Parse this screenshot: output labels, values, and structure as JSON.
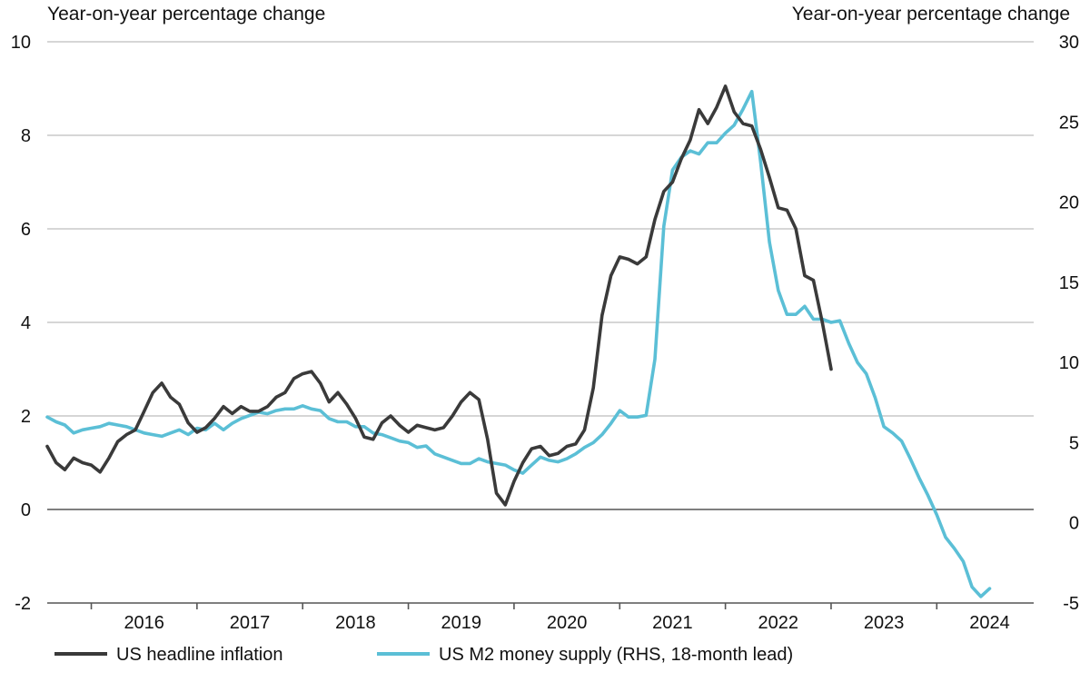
{
  "chart_data": {
    "type": "line",
    "title": "",
    "left_axis": {
      "label": "Year-on-year percentage change",
      "ylim": [
        -2,
        10
      ],
      "ticks": [
        -2,
        0,
        2,
        4,
        6,
        8,
        10
      ],
      "tick_labels": [
        "-2",
        "0",
        "2",
        "4",
        "6",
        "8",
        "10"
      ]
    },
    "right_axis": {
      "label": "Year-on-year percentage change",
      "ylim": [
        -5,
        30
      ],
      "ticks": [
        -5,
        0,
        5,
        10,
        15,
        20,
        25,
        30
      ],
      "tick_labels": [
        "-5",
        "0",
        "5",
        "10",
        "15",
        "20",
        "25",
        "30"
      ]
    },
    "x_axis": {
      "xlim": [
        2015.583,
        2024.917
      ],
      "year_labels": [
        "2016",
        "2017",
        "2018",
        "2019",
        "2020",
        "2021",
        "2022",
        "2023",
        "2024"
      ]
    },
    "gridlines": true,
    "legend_position": "bottom",
    "series": [
      {
        "name": "US headline inflation",
        "axis": "left",
        "color": "#3a3a3a",
        "points": [
          [
            2015.583,
            1.35
          ],
          [
            2015.667,
            1.0
          ],
          [
            2015.75,
            0.85
          ],
          [
            2015.833,
            1.1
          ],
          [
            2015.917,
            1.0
          ],
          [
            2016.0,
            0.95
          ],
          [
            2016.083,
            0.8
          ],
          [
            2016.167,
            1.1
          ],
          [
            2016.25,
            1.45
          ],
          [
            2016.333,
            1.6
          ],
          [
            2016.417,
            1.7
          ],
          [
            2016.5,
            2.1
          ],
          [
            2016.583,
            2.5
          ],
          [
            2016.667,
            2.7
          ],
          [
            2016.75,
            2.4
          ],
          [
            2016.833,
            2.25
          ],
          [
            2016.917,
            1.85
          ],
          [
            2017.0,
            1.65
          ],
          [
            2017.083,
            1.75
          ],
          [
            2017.167,
            1.95
          ],
          [
            2017.25,
            2.2
          ],
          [
            2017.333,
            2.05
          ],
          [
            2017.417,
            2.2
          ],
          [
            2017.5,
            2.1
          ],
          [
            2017.583,
            2.1
          ],
          [
            2017.667,
            2.2
          ],
          [
            2017.75,
            2.4
          ],
          [
            2017.833,
            2.5
          ],
          [
            2017.917,
            2.8
          ],
          [
            2018.0,
            2.9
          ],
          [
            2018.083,
            2.95
          ],
          [
            2018.167,
            2.7
          ],
          [
            2018.25,
            2.3
          ],
          [
            2018.333,
            2.5
          ],
          [
            2018.417,
            2.25
          ],
          [
            2018.5,
            1.95
          ],
          [
            2018.583,
            1.55
          ],
          [
            2018.667,
            1.5
          ],
          [
            2018.75,
            1.85
          ],
          [
            2018.833,
            2.0
          ],
          [
            2018.917,
            1.8
          ],
          [
            2019.0,
            1.65
          ],
          [
            2019.083,
            1.8
          ],
          [
            2019.167,
            1.75
          ],
          [
            2019.25,
            1.7
          ],
          [
            2019.333,
            1.75
          ],
          [
            2019.417,
            2.0
          ],
          [
            2019.5,
            2.3
          ],
          [
            2019.583,
            2.5
          ],
          [
            2019.667,
            2.35
          ],
          [
            2019.75,
            1.5
          ],
          [
            2019.833,
            0.35
          ],
          [
            2019.917,
            0.1
          ],
          [
            2020.0,
            0.6
          ],
          [
            2020.083,
            1.0
          ],
          [
            2020.167,
            1.3
          ],
          [
            2020.25,
            1.35
          ],
          [
            2020.333,
            1.15
          ],
          [
            2020.417,
            1.2
          ],
          [
            2020.5,
            1.35
          ],
          [
            2020.583,
            1.4
          ],
          [
            2020.667,
            1.7
          ],
          [
            2020.75,
            2.6
          ],
          [
            2020.833,
            4.15
          ],
          [
            2020.917,
            5.0
          ],
          [
            2021.0,
            5.4
          ],
          [
            2021.083,
            5.35
          ],
          [
            2021.167,
            5.25
          ],
          [
            2021.25,
            5.4
          ],
          [
            2021.333,
            6.2
          ],
          [
            2021.417,
            6.8
          ],
          [
            2021.5,
            7.0
          ],
          [
            2021.583,
            7.5
          ],
          [
            2021.667,
            7.9
          ],
          [
            2021.75,
            8.55
          ],
          [
            2021.833,
            8.25
          ],
          [
            2021.917,
            8.6
          ],
          [
            2022.0,
            9.05
          ],
          [
            2022.083,
            8.5
          ],
          [
            2022.167,
            8.25
          ],
          [
            2022.25,
            8.2
          ],
          [
            2022.333,
            7.7
          ],
          [
            2022.417,
            7.1
          ],
          [
            2022.5,
            6.45
          ],
          [
            2022.583,
            6.4
          ],
          [
            2022.667,
            6.0
          ],
          [
            2022.75,
            5.0
          ],
          [
            2022.833,
            4.9
          ],
          [
            2022.917,
            4.0
          ],
          [
            2023.0,
            3.0
          ]
        ]
      },
      {
        "name": "US M2 money supply (RHS, 18-month lead)",
        "axis": "right",
        "color": "#5bbfd6",
        "points": [
          [
            2015.583,
            6.6
          ],
          [
            2015.667,
            6.3
          ],
          [
            2015.75,
            6.1
          ],
          [
            2015.833,
            5.6
          ],
          [
            2015.917,
            5.8
          ],
          [
            2016.0,
            5.9
          ],
          [
            2016.083,
            6.0
          ],
          [
            2016.167,
            6.2
          ],
          [
            2016.25,
            6.1
          ],
          [
            2016.333,
            6.0
          ],
          [
            2016.417,
            5.8
          ],
          [
            2016.5,
            5.6
          ],
          [
            2016.583,
            5.5
          ],
          [
            2016.667,
            5.4
          ],
          [
            2016.75,
            5.6
          ],
          [
            2016.833,
            5.8
          ],
          [
            2016.917,
            5.5
          ],
          [
            2017.0,
            5.9
          ],
          [
            2017.083,
            5.8
          ],
          [
            2017.167,
            6.2
          ],
          [
            2017.25,
            5.8
          ],
          [
            2017.333,
            6.2
          ],
          [
            2017.417,
            6.5
          ],
          [
            2017.5,
            6.7
          ],
          [
            2017.583,
            6.9
          ],
          [
            2017.667,
            6.8
          ],
          [
            2017.75,
            7.0
          ],
          [
            2017.833,
            7.1
          ],
          [
            2017.917,
            7.1
          ],
          [
            2018.0,
            7.3
          ],
          [
            2018.083,
            7.1
          ],
          [
            2018.167,
            7.0
          ],
          [
            2018.25,
            6.5
          ],
          [
            2018.333,
            6.3
          ],
          [
            2018.417,
            6.3
          ],
          [
            2018.5,
            6.0
          ],
          [
            2018.583,
            6.0
          ],
          [
            2018.667,
            5.6
          ],
          [
            2018.75,
            5.5
          ],
          [
            2018.833,
            5.3
          ],
          [
            2018.917,
            5.1
          ],
          [
            2019.0,
            5.0
          ],
          [
            2019.083,
            4.7
          ],
          [
            2019.167,
            4.8
          ],
          [
            2019.25,
            4.3
          ],
          [
            2019.333,
            4.1
          ],
          [
            2019.417,
            3.9
          ],
          [
            2019.5,
            3.7
          ],
          [
            2019.583,
            3.7
          ],
          [
            2019.667,
            4.0
          ],
          [
            2019.75,
            3.8
          ],
          [
            2019.833,
            3.7
          ],
          [
            2019.917,
            3.6
          ],
          [
            2020.0,
            3.3
          ],
          [
            2020.083,
            3.1
          ],
          [
            2020.167,
            3.6
          ],
          [
            2020.25,
            4.1
          ],
          [
            2020.333,
            3.9
          ],
          [
            2020.417,
            3.8
          ],
          [
            2020.5,
            4.0
          ],
          [
            2020.583,
            4.3
          ],
          [
            2020.667,
            4.7
          ],
          [
            2020.75,
            5.0
          ],
          [
            2020.833,
            5.5
          ],
          [
            2020.917,
            6.2
          ],
          [
            2021.0,
            7.0
          ],
          [
            2021.083,
            6.6
          ],
          [
            2021.167,
            6.6
          ],
          [
            2021.25,
            6.7
          ],
          [
            2021.333,
            10.2
          ],
          [
            2021.417,
            18.5
          ],
          [
            2021.5,
            22.0
          ],
          [
            2021.583,
            22.8
          ],
          [
            2021.667,
            23.2
          ],
          [
            2021.75,
            23.0
          ],
          [
            2021.833,
            23.7
          ],
          [
            2021.917,
            23.7
          ],
          [
            2022.0,
            24.3
          ],
          [
            2022.083,
            24.8
          ],
          [
            2022.167,
            25.8
          ],
          [
            2022.25,
            26.9
          ],
          [
            2022.333,
            22.5
          ],
          [
            2022.417,
            17.5
          ],
          [
            2022.5,
            14.5
          ],
          [
            2022.583,
            13.0
          ],
          [
            2022.667,
            13.0
          ],
          [
            2022.75,
            13.5
          ],
          [
            2022.833,
            12.7
          ],
          [
            2022.917,
            12.7
          ],
          [
            2023.0,
            12.5
          ],
          [
            2023.083,
            12.6
          ],
          [
            2023.167,
            11.2
          ],
          [
            2023.25,
            10.0
          ],
          [
            2023.333,
            9.3
          ],
          [
            2023.417,
            7.8
          ],
          [
            2023.5,
            6.0
          ],
          [
            2023.583,
            5.6
          ],
          [
            2023.667,
            5.1
          ],
          [
            2023.75,
            4.0
          ],
          [
            2023.833,
            2.8
          ],
          [
            2023.917,
            1.7
          ],
          [
            2024.0,
            0.5
          ],
          [
            2024.083,
            -0.9
          ],
          [
            2024.167,
            -1.6
          ],
          [
            2024.25,
            -2.4
          ],
          [
            2024.333,
            -4.0
          ],
          [
            2024.417,
            -4.6
          ],
          [
            2024.5,
            -4.1
          ]
        ]
      }
    ]
  }
}
